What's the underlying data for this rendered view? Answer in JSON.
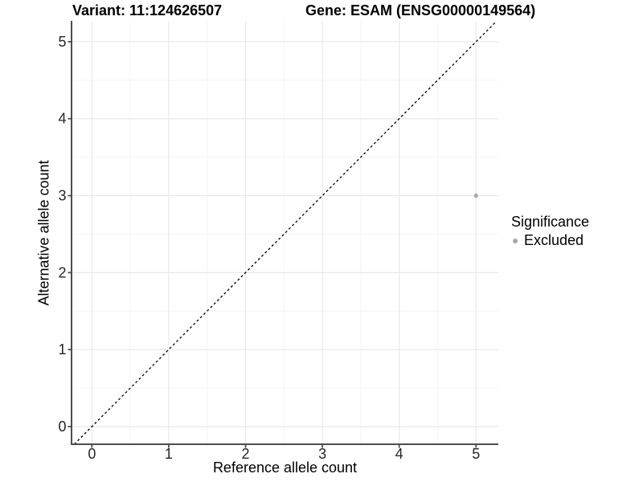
{
  "chart_data": {
    "type": "scatter",
    "title_left": "Variant: 11:124626507",
    "title_right": "Gene: ESAM (ENSG00000149564)",
    "xlabel": "Reference allele count",
    "ylabel": "Alternative allele count",
    "x_ticks": [
      0,
      1,
      2,
      3,
      4,
      5
    ],
    "y_ticks": [
      0,
      1,
      2,
      3,
      4,
      5
    ],
    "xlim": [
      -0.265,
      5.29
    ],
    "ylim": [
      -0.23,
      5.26
    ],
    "grid": {
      "major": true,
      "minor": true
    },
    "points": [
      {
        "x": 5,
        "y": 3,
        "significance": "Excluded"
      }
    ],
    "reference_line": {
      "kind": "identity",
      "style": "dashed",
      "color": "#000000"
    },
    "legend": {
      "title": "Significance",
      "position": "right",
      "items": [
        {
          "label": "Excluded",
          "color": "#a6a6a6"
        }
      ]
    },
    "colors": {
      "point": "#a6a6a6",
      "axis_line": "#4d4d4d",
      "grid_major": "#e8e8e8",
      "grid_minor": "#f4f4f4",
      "tick_label": "#262626",
      "background": "#ffffff"
    }
  }
}
